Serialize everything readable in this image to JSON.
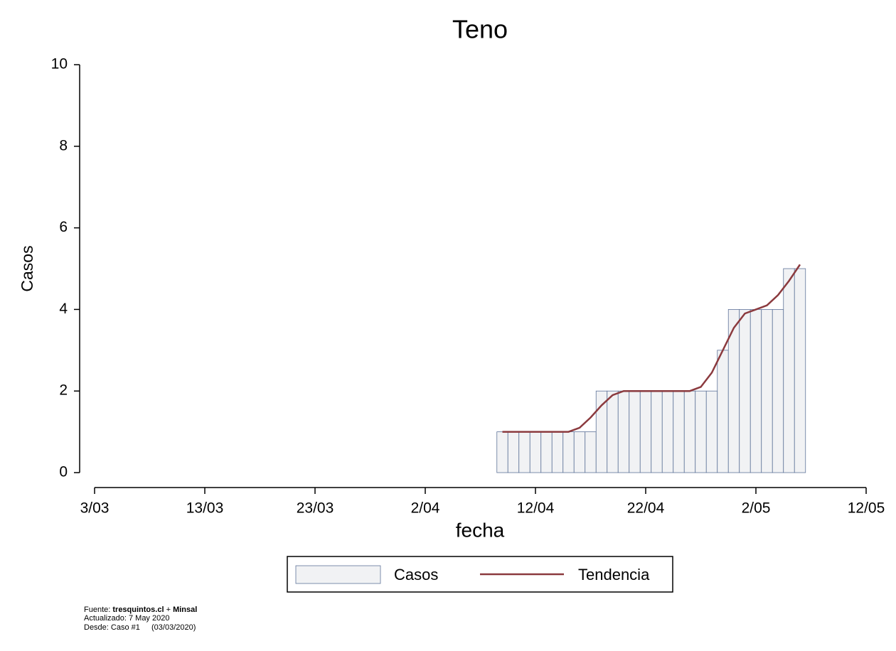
{
  "chart_data": {
    "type": "bar",
    "title": "Teno",
    "xlabel": "fecha",
    "ylabel": "Casos",
    "x": [
      "9/04",
      "10/04",
      "11/04",
      "12/04",
      "13/04",
      "14/04",
      "15/04",
      "16/04",
      "17/04",
      "18/04",
      "19/04",
      "20/04",
      "21/04",
      "22/04",
      "23/04",
      "24/04",
      "25/04",
      "26/04",
      "27/04",
      "28/04",
      "29/04",
      "30/04",
      "1/05",
      "2/05",
      "3/05",
      "4/05",
      "5/05",
      "6/05"
    ],
    "series": [
      {
        "name": "Casos",
        "type": "bar",
        "color": "#f1f2f4",
        "edge": "#5f7399",
        "values": [
          1,
          1,
          1,
          1,
          1,
          1,
          1,
          1,
          1,
          2,
          2,
          2,
          2,
          2,
          2,
          2,
          2,
          2,
          2,
          2,
          3,
          4,
          4,
          4,
          4,
          4,
          5,
          5
        ]
      },
      {
        "name": "Tendencia",
        "type": "line",
        "color": "#8b3a3e",
        "values": [
          1,
          1,
          1,
          1,
          1,
          1,
          1,
          1.1,
          1.35,
          1.65,
          1.9,
          2,
          2,
          2,
          2,
          2,
          2,
          2,
          2.1,
          2.45,
          3,
          3.55,
          3.9,
          4,
          4.1,
          4.35,
          4.7,
          5.1
        ]
      }
    ],
    "xlim": [
      "3/03",
      "12/05"
    ],
    "xticks": [
      "3/03",
      "13/03",
      "23/03",
      "2/04",
      "12/04",
      "22/04",
      "2/05",
      "12/05"
    ],
    "ylim": [
      0,
      10
    ],
    "yticks": [
      0,
      2,
      4,
      6,
      8,
      10
    ],
    "legend": "bottom"
  },
  "footer": {
    "source_label": "Fuente:",
    "site": "tresquintos.cl",
    "plus": "+",
    "org": "Minsal",
    "updated": "Actualizado: 7 May 2020",
    "since": "Desde: Caso #1",
    "since_date": "(03/03/2020)"
  }
}
